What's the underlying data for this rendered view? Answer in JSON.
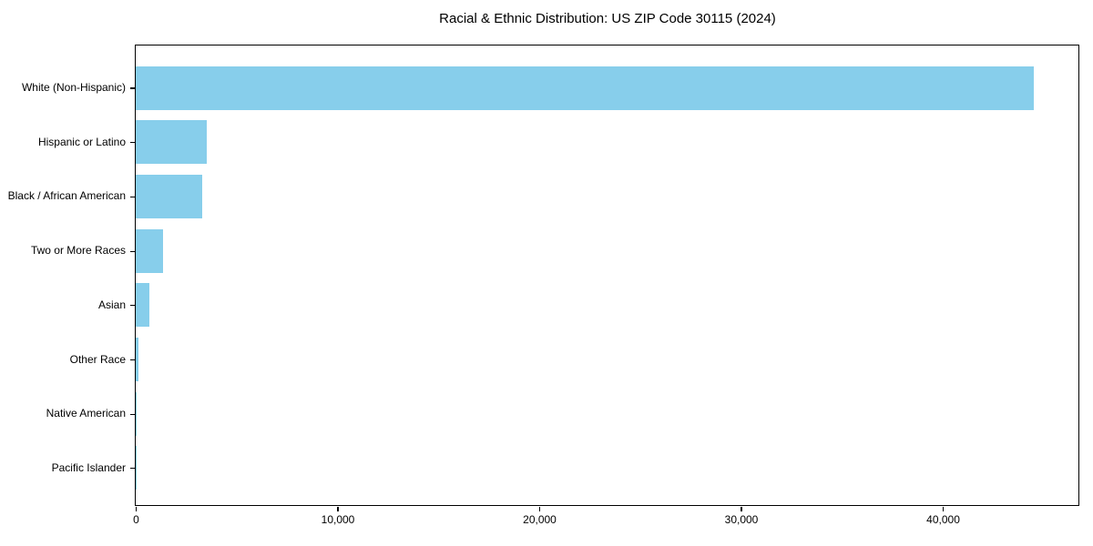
{
  "chart_data": {
    "type": "bar",
    "orientation": "horizontal",
    "title": "Racial & Ethnic Distribution: US ZIP Code 30115 (2024)",
    "categories": [
      "White (Non-Hispanic)",
      "Hispanic or Latino",
      "Black / African American",
      "Two or More Races",
      "Asian",
      "Other Race",
      "Native American",
      "Pacific Islander"
    ],
    "values": [
      44500,
      3500,
      3300,
      1350,
      670,
      150,
      40,
      10
    ],
    "xlabel": "",
    "ylabel": "",
    "xlim": [
      0,
      46725
    ],
    "xticks": [
      0,
      10000,
      20000,
      30000,
      40000
    ],
    "xtick_labels": [
      "0",
      "10,000",
      "20,000",
      "30,000",
      "40,000"
    ],
    "bar_color": "#87CEEB",
    "text_color": "#000000",
    "grid": false,
    "legend": null
  }
}
